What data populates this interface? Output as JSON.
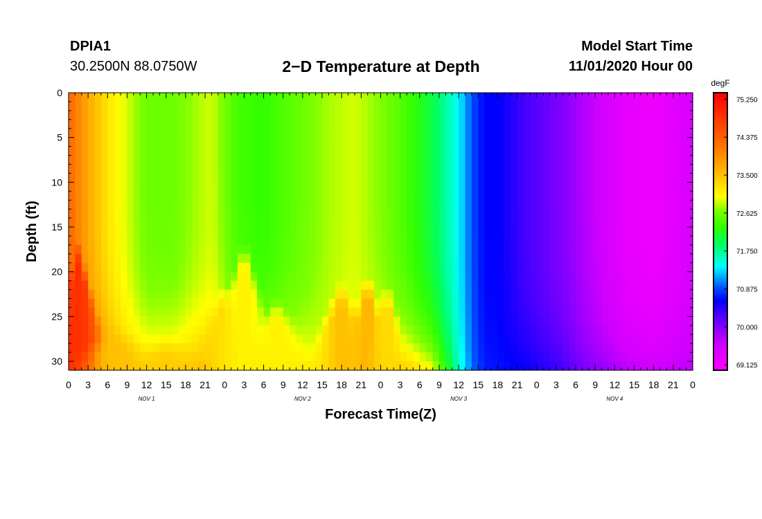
{
  "header": {
    "station": "DPIA1",
    "coordinates": "30.2500N 88.0750W",
    "title": "2−D Temperature at Depth",
    "start_label": "Model Start Time",
    "start_value": "11/01/2020 Hour 00"
  },
  "chart_data": {
    "type": "heatmap",
    "title": "2−D Temperature at Depth",
    "xlabel": "Forecast Time(Z)",
    "ylabel": "Depth (ft)",
    "x_unit": "hours since model start",
    "x_range": [
      0,
      96
    ],
    "y_range": [
      0,
      31
    ],
    "y_inverted": true,
    "x_ticks": [
      0,
      3,
      6,
      9,
      12,
      15,
      18,
      21,
      24,
      27,
      30,
      33,
      36,
      39,
      42,
      45,
      48,
      51,
      54,
      57,
      60,
      63,
      66,
      69,
      72,
      75,
      78,
      81,
      84,
      87,
      90,
      93,
      96
    ],
    "x_tick_labels": [
      "0",
      "3",
      "6",
      "9",
      "12",
      "15",
      "18",
      "21",
      "0",
      "3",
      "6",
      "9",
      "12",
      "15",
      "18",
      "21",
      "0",
      "3",
      "6",
      "9",
      "12",
      "15",
      "18",
      "21",
      "0",
      "3",
      "6",
      "9",
      "12",
      "15",
      "18",
      "21",
      "0"
    ],
    "y_ticks": [
      0,
      5,
      10,
      15,
      20,
      25,
      30
    ],
    "y_tick_labels": [
      "0",
      "5",
      "10",
      "15",
      "20",
      "25",
      "30"
    ],
    "day_labels": [
      {
        "text": "NOV  1",
        "x": 12
      },
      {
        "text": "NOV  2",
        "x": 36
      },
      {
        "text": "NOV  3",
        "x": 60
      },
      {
        "text": "NOV  4",
        "x": 84
      }
    ],
    "colorbar": {
      "unit": "degF",
      "min": 69.0,
      "max": 75.4,
      "ticks": [
        75.25,
        74.375,
        73.5,
        72.625,
        71.75,
        70.875,
        70.0,
        69.125
      ],
      "tick_labels": [
        "75.250",
        "74.375",
        "73.500",
        "72.625",
        "71.750",
        "70.875",
        "70.000",
        "69.125"
      ],
      "stops": [
        {
          "v": 69.0,
          "c": "#ff00ff"
        },
        {
          "v": 69.6,
          "c": "#d000ff"
        },
        {
          "v": 70.1,
          "c": "#7000ff"
        },
        {
          "v": 70.6,
          "c": "#0000ff"
        },
        {
          "v": 70.9,
          "c": "#0050ff"
        },
        {
          "v": 71.4,
          "c": "#00ffff"
        },
        {
          "v": 71.9,
          "c": "#00ff60"
        },
        {
          "v": 72.3,
          "c": "#30ff00"
        },
        {
          "v": 72.7,
          "c": "#80ff00"
        },
        {
          "v": 73.0,
          "c": "#ffff00"
        },
        {
          "v": 73.5,
          "c": "#ffc000"
        },
        {
          "v": 74.2,
          "c": "#ff7000"
        },
        {
          "v": 75.4,
          "c": "#ff0000"
        }
      ]
    },
    "surface_series": {
      "x": [
        0,
        3,
        6,
        8,
        12,
        16,
        20,
        22,
        26,
        30,
        36,
        40,
        44,
        48,
        52,
        56,
        58,
        60,
        62,
        64,
        66,
        70,
        76,
        80,
        86,
        90,
        96
      ],
      "values": [
        74.3,
        73.7,
        73.2,
        73.0,
        72.6,
        72.6,
        72.8,
        72.9,
        72.4,
        72.3,
        72.6,
        72.8,
        72.9,
        72.7,
        72.4,
        72.0,
        71.7,
        71.4,
        70.9,
        70.6,
        70.6,
        70.3,
        70.0,
        69.7,
        69.3,
        69.2,
        69.5
      ]
    },
    "bottom_series": {
      "x": [
        0,
        4,
        8,
        12,
        16,
        20,
        24,
        30,
        36,
        40,
        44,
        48,
        52,
        56,
        58,
        60,
        62,
        64,
        70,
        76,
        80,
        86,
        90,
        96
      ],
      "values": [
        75.2,
        74.6,
        73.6,
        73.4,
        73.4,
        73.6,
        73.7,
        73.4,
        73.2,
        73.0,
        73.2,
        73.4,
        73.4,
        73.0,
        72.3,
        71.6,
        71.0,
        70.7,
        70.6,
        70.3,
        70.0,
        69.7,
        69.6,
        69.7
      ]
    },
    "warm_features": [
      {
        "x": 1.5,
        "top_depth": 18,
        "half_width": 3.5,
        "value": 74.9
      },
      {
        "x": 7,
        "top_depth": 27,
        "half_width": 5,
        "value": 73.5
      },
      {
        "x": 15,
        "top_depth": 28.5,
        "half_width": 5.5,
        "value": 73.4
      },
      {
        "x": 24,
        "top_depth": 22.5,
        "half_width": 4,
        "value": 73.3
      },
      {
        "x": 27,
        "top_depth": 17.5,
        "half_width": 4,
        "value": 73.1
      },
      {
        "x": 32,
        "top_depth": 24,
        "half_width": 4.5,
        "value": 73.1
      },
      {
        "x": 42,
        "top_depth": 22,
        "half_width": 4,
        "value": 73.5
      },
      {
        "x": 46,
        "top_depth": 21,
        "half_width": 3,
        "value": 73.6
      },
      {
        "x": 49,
        "top_depth": 22,
        "half_width": 2.5,
        "value": 73.3
      }
    ]
  }
}
